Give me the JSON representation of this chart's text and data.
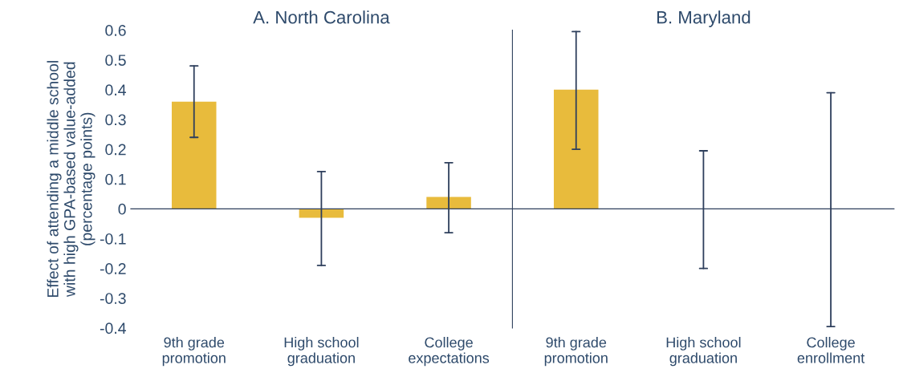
{
  "chart_data": [
    {
      "type": "bar",
      "title": "A. North Carolina",
      "ylabel": "Effect of attending a middle school\nwith high GPA-based value-added\n(percentage points)",
      "categories": [
        "9th grade\npromotion",
        "High school\ngraduation",
        "College\nexpectations"
      ],
      "values": [
        0.36,
        -0.03,
        0.04
      ],
      "color": "#e8bb3c",
      "errors": [
        [
          0.24,
          0.48
        ],
        [
          -0.19,
          0.125
        ],
        [
          -0.08,
          0.155
        ]
      ],
      "ylim": [
        -0.4,
        0.6
      ],
      "yticks": [
        {
          "value": -0.4,
          "label": "-0.4"
        },
        {
          "value": -0.3,
          "label": "-0.3"
        },
        {
          "value": -0.2,
          "label": "-0.2"
        },
        {
          "value": -0.1,
          "label": "-0.1"
        },
        0,
        0.1,
        0.2,
        0.3,
        0.4,
        0.5,
        0.6
      ],
      "grid": false
    },
    {
      "type": "bar",
      "title": "B. Maryland",
      "categories": [
        "9th grade\npromotion",
        "High school\ngraduation",
        "College\nenrollment"
      ],
      "values": [
        0.4,
        0,
        0
      ],
      "color": "#e8bb3c",
      "errors": [
        [
          0.2,
          0.595
        ],
        [
          -0.2,
          0.195
        ],
        [
          -0.395,
          0.39
        ]
      ],
      "ylim": [
        -0.4,
        0.6
      ],
      "tick_labels": "x",
      "grid": false
    }
  ]
}
